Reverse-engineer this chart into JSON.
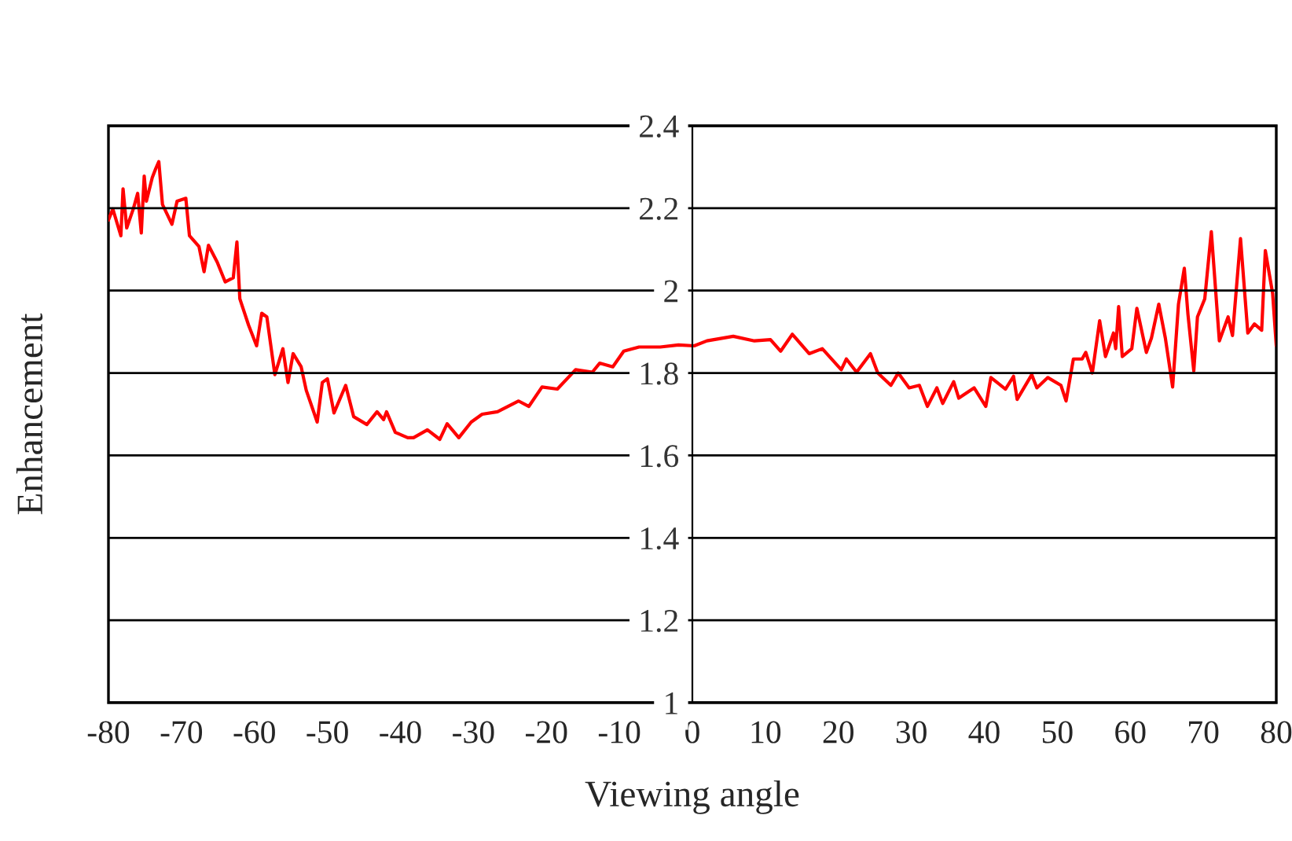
{
  "chart_data": {
    "type": "line",
    "xlabel": "Viewing angle",
    "ylabel": "Enhancement",
    "xlim": [
      -80,
      80
    ],
    "xticks": [
      -80,
      -70,
      -60,
      -50,
      -40,
      -30,
      -20,
      -10,
      0,
      10,
      20,
      30,
      40,
      50,
      60,
      70,
      80
    ],
    "ylim": [
      1,
      2.4
    ],
    "yticks": [
      1,
      1.2,
      1.4,
      1.6,
      1.8,
      2,
      2.2,
      2.4
    ],
    "grid": "y",
    "marker": "none",
    "line_style": "solid",
    "series": [
      {
        "color": "#ff0000",
        "x": [
          -80,
          -79.4,
          -78.3,
          -78,
          -77.5,
          -76.6,
          -76,
          -75.5,
          -75.1,
          -74.8,
          -74,
          -73.5,
          -73.1,
          -72.6,
          -71.3,
          -70.6,
          -69.4,
          -68.9,
          -67.6,
          -66.9,
          -66.3,
          -65.1,
          -64,
          -62.9,
          -62.4,
          -62,
          -60.8,
          -59.7,
          -59,
          -58.3,
          -57.2,
          -56.1,
          -55.4,
          -54.7,
          -53.6,
          -52.9,
          -51.4,
          -50.7,
          -50,
          -49.1,
          -47.5,
          -46.4,
          -44.6,
          -43.2,
          -42.3,
          -41.9,
          -40.7,
          -39,
          -38.2,
          -36.3,
          -34.6,
          -33.6,
          -32,
          -30.3,
          -28.8,
          -26.7,
          -23.8,
          -22.4,
          -20.6,
          -18.5,
          -16,
          -13.7,
          -12.7,
          -10.9,
          -9.4,
          -7.3,
          -4.4,
          -1.9,
          0.25,
          2,
          5.6,
          8.5,
          10.7,
          12.1,
          13.7,
          16,
          17.8,
          20.4,
          21.1,
          22.5,
          24.4,
          25.4,
          27.2,
          28.2,
          29.7,
          31.1,
          32.2,
          33.5,
          34.3,
          35.8,
          36.5,
          38.6,
          40.2,
          40.9,
          42.9,
          44,
          44.5,
          46.5,
          47.2,
          48.7,
          50.5,
          51.2,
          52.2,
          53.4,
          53.9,
          54.8,
          55.8,
          56.6,
          57.7,
          58,
          58.4,
          58.9,
          60.2,
          60.9,
          62.2,
          62.9,
          63.9,
          64.8,
          65.8,
          66.6,
          67.4,
          67.9,
          68.7,
          69.2,
          70.2,
          71.1,
          72.2,
          73.4,
          74,
          75.1,
          76.1,
          77,
          78,
          78.5,
          79.5,
          80
        ],
        "values": [
          2.171,
          2.198,
          2.133,
          2.247,
          2.152,
          2.198,
          2.236,
          2.14,
          2.278,
          2.217,
          2.274,
          2.297,
          2.313,
          2.209,
          2.161,
          2.217,
          2.224,
          2.133,
          2.107,
          2.046,
          2.11,
          2.069,
          2.021,
          2.031,
          2.118,
          1.98,
          1.916,
          1.866,
          1.945,
          1.936,
          1.796,
          1.859,
          1.777,
          1.847,
          1.815,
          1.758,
          1.681,
          1.777,
          1.786,
          1.703,
          1.77,
          1.694,
          1.675,
          1.706,
          1.687,
          1.706,
          1.656,
          1.643,
          1.643,
          1.662,
          1.639,
          1.677,
          1.643,
          1.681,
          1.7,
          1.706,
          1.732,
          1.719,
          1.766,
          1.761,
          1.808,
          1.802,
          1.824,
          1.815,
          1.853,
          1.863,
          1.863,
          1.868,
          1.866,
          1.878,
          1.889,
          1.878,
          1.881,
          1.853,
          1.894,
          1.847,
          1.859,
          1.808,
          1.834,
          1.802,
          1.847,
          1.8,
          1.77,
          1.8,
          1.764,
          1.77,
          1.719,
          1.764,
          1.726,
          1.779,
          1.739,
          1.764,
          1.719,
          1.789,
          1.761,
          1.792,
          1.736,
          1.796,
          1.764,
          1.789,
          1.77,
          1.732,
          1.834,
          1.834,
          1.85,
          1.8,
          1.927,
          1.84,
          1.897,
          1.859,
          1.961,
          1.84,
          1.859,
          1.957,
          1.85,
          1.885,
          1.967,
          1.885,
          1.766,
          1.967,
          2.054,
          1.942,
          1.805,
          1.936,
          1.98,
          2.143,
          1.878,
          1.936,
          1.891,
          2.126,
          1.897,
          1.919,
          1.904,
          2.097,
          1.993,
          1.866
        ]
      }
    ]
  }
}
